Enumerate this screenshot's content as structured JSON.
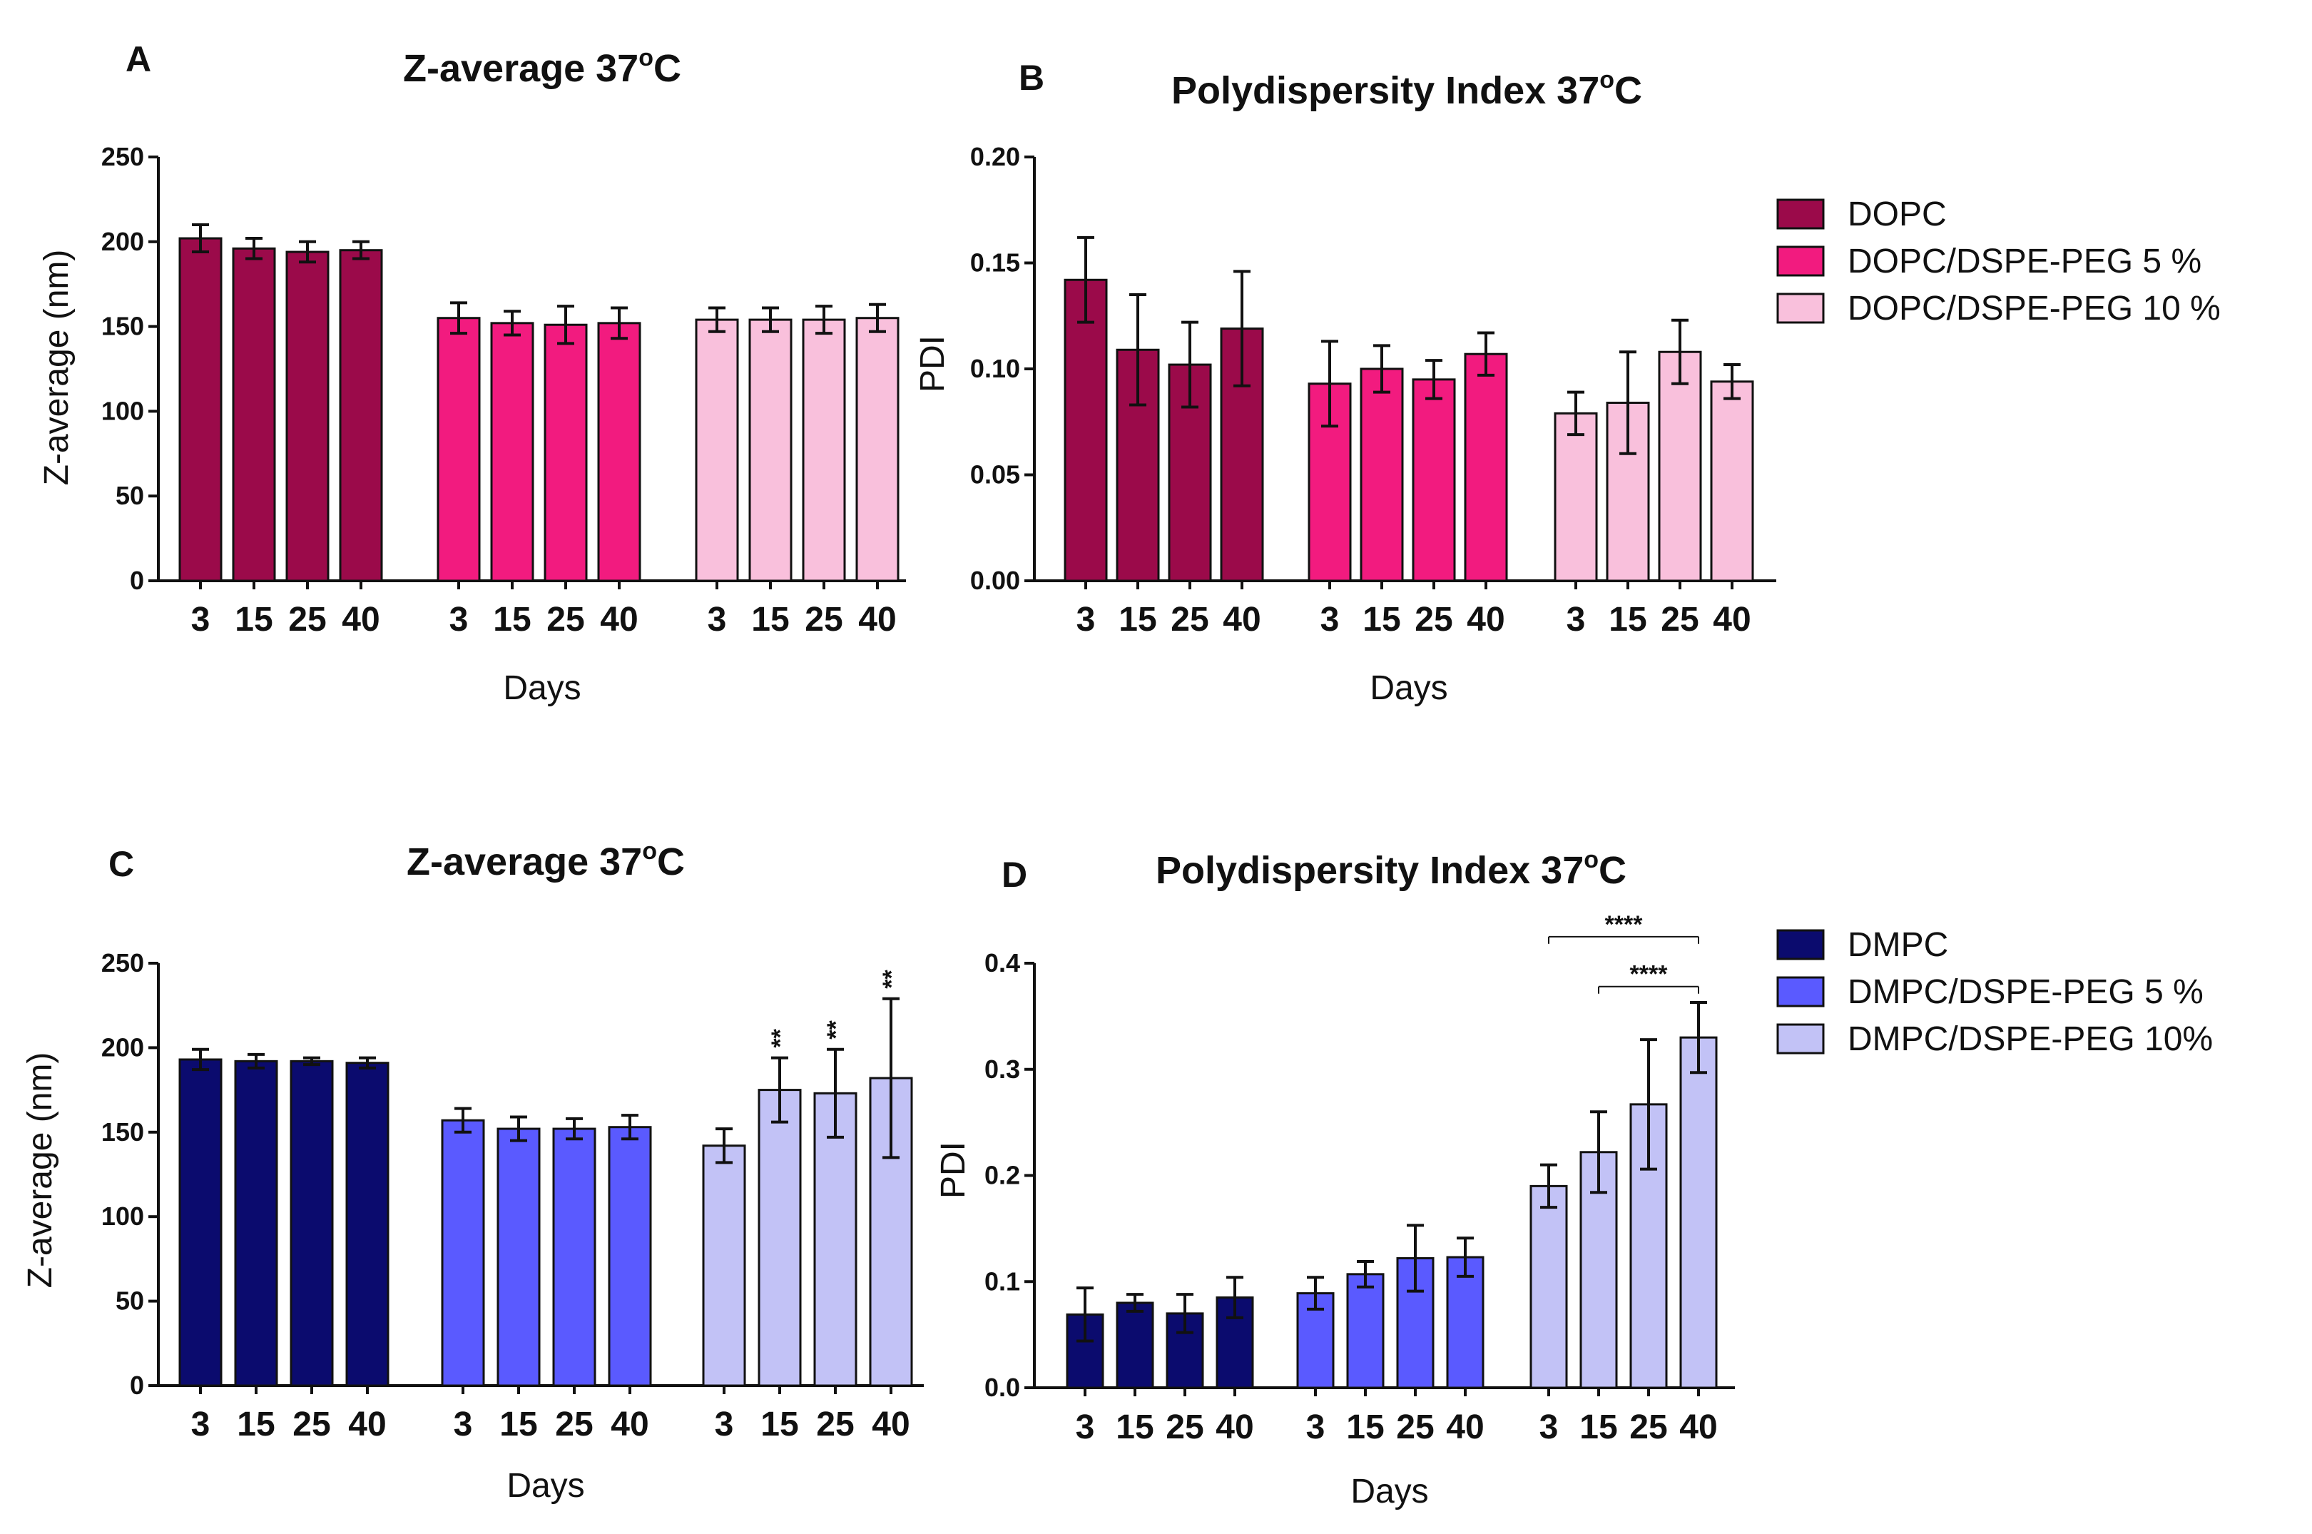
{
  "chart_data": [
    {
      "panel": "A",
      "type": "bar",
      "title": "Z-average  37",
      "title_sup": "o",
      "title_suffix": "C",
      "xlabel": "Days",
      "ylabel": "Z-average (nm)",
      "ylim": [
        0,
        250
      ],
      "yticks": [
        "0",
        "50",
        "100",
        "150",
        "200",
        "250"
      ],
      "categories": [
        "3",
        "15",
        "25",
        "40"
      ],
      "series": [
        {
          "name": "DOPC",
          "color": "#9b0a4a",
          "values": [
            202,
            196,
            194,
            195
          ],
          "errors": [
            8,
            6,
            6,
            5
          ]
        },
        {
          "name": "DOPC/DSPE-PEG 5 %",
          "color": "#f21b7f",
          "values": [
            155,
            152,
            151,
            152
          ],
          "errors": [
            9,
            7,
            11,
            9
          ]
        },
        {
          "name": "DOPC/DSPE-PEG 10 %",
          "color": "#f9c0dc",
          "values": [
            154,
            154,
            154,
            155
          ],
          "errors": [
            7,
            7,
            8,
            8
          ]
        }
      ],
      "annotations": []
    },
    {
      "panel": "B",
      "type": "bar",
      "title": "Polydispersity Index 37",
      "title_sup": "o",
      "title_suffix": "C",
      "xlabel": "Days",
      "ylabel": "PDI",
      "ylim": [
        0,
        0.2
      ],
      "yticks": [
        "0.00",
        "0.05",
        "0.10",
        "0.15",
        "0.20"
      ],
      "categories": [
        "3",
        "15",
        "25",
        "40"
      ],
      "series": [
        {
          "name": "DOPC",
          "color": "#9b0a4a",
          "values": [
            0.142,
            0.109,
            0.102,
            0.119
          ],
          "errors": [
            0.02,
            0.026,
            0.02,
            0.027
          ]
        },
        {
          "name": "DOPC/DSPE-PEG 5 %",
          "color": "#f21b7f",
          "values": [
            0.093,
            0.1,
            0.095,
            0.107
          ],
          "errors": [
            0.02,
            0.011,
            0.009,
            0.01
          ]
        },
        {
          "name": "DOPC/DSPE-PEG 10 %",
          "color": "#f9c0dc",
          "values": [
            0.079,
            0.084,
            0.108,
            0.094
          ],
          "errors": [
            0.01,
            0.024,
            0.015,
            0.008
          ]
        }
      ],
      "annotations": []
    },
    {
      "panel": "C",
      "type": "bar",
      "title": "Z-average  37",
      "title_sup": "o",
      "title_suffix": "C",
      "xlabel": "Days",
      "ylabel": "Z-average (nm)",
      "ylim": [
        0,
        250
      ],
      "yticks": [
        "0",
        "50",
        "100",
        "150",
        "200",
        "250"
      ],
      "categories": [
        "3",
        "15",
        "25",
        "40"
      ],
      "series": [
        {
          "name": "DMPC",
          "color": "#0b0b6e",
          "values": [
            193,
            192,
            192,
            191
          ],
          "errors": [
            6,
            4,
            2,
            3
          ]
        },
        {
          "name": "DMPC/DSPE-PEG 5 %",
          "color": "#5a5aff",
          "values": [
            157,
            152,
            152,
            153
          ],
          "errors": [
            7,
            7,
            6,
            7
          ]
        },
        {
          "name": "DMPC/DSPE-PEG 10%",
          "color": "#c2c2f6",
          "values": [
            142,
            175,
            173,
            182
          ],
          "errors": [
            10,
            19,
            26,
            47
          ]
        }
      ],
      "annotations": [
        {
          "series": 2,
          "category": 1,
          "text": "**"
        },
        {
          "series": 2,
          "category": 2,
          "text": "**"
        },
        {
          "series": 2,
          "category": 3,
          "text": "**"
        }
      ]
    },
    {
      "panel": "D",
      "type": "bar",
      "title": "Polydispersity Index 37",
      "title_sup": "o",
      "title_suffix": "C",
      "xlabel": "Days",
      "ylabel": "PDI",
      "ylim": [
        0,
        0.4
      ],
      "yticks": [
        "0.0",
        "0.1",
        "0.2",
        "0.3",
        "0.4"
      ],
      "categories": [
        "3",
        "15",
        "25",
        "40"
      ],
      "series": [
        {
          "name": "DMPC",
          "color": "#0b0b6e",
          "values": [
            0.069,
            0.08,
            0.07,
            0.085
          ],
          "errors": [
            0.025,
            0.008,
            0.018,
            0.019
          ]
        },
        {
          "name": "DMPC/DSPE-PEG 5 %",
          "color": "#5a5aff",
          "values": [
            0.089,
            0.107,
            0.122,
            0.123
          ],
          "errors": [
            0.015,
            0.012,
            0.031,
            0.018
          ]
        },
        {
          "name": "DMPC/DSPE-PEG 10%",
          "color": "#c2c2f6",
          "values": [
            0.19,
            0.222,
            0.267,
            0.33
          ],
          "errors": [
            0.02,
            0.038,
            0.061,
            0.033
          ]
        }
      ],
      "annotations": [
        {
          "type": "bracket",
          "series": 2,
          "from_category": 0,
          "to_category": 3,
          "text": "****",
          "level": 0.425
        },
        {
          "type": "bracket",
          "series": 2,
          "from_category": 1,
          "to_category": 3,
          "text": "****",
          "level": 0.378
        }
      ]
    }
  ],
  "legends": [
    {
      "items": [
        "DOPC",
        "DOPC/DSPE-PEG 5 %",
        "DOPC/DSPE-PEG 10 %"
      ],
      "colors": [
        "#9b0a4a",
        "#f21b7f",
        "#f9c0dc"
      ]
    },
    {
      "items": [
        "DMPC",
        "DMPC/DSPE-PEG 5 %",
        "DMPC/DSPE-PEG 10%"
      ],
      "colors": [
        "#0b0b6e",
        "#5a5aff",
        "#c2c2f6"
      ]
    }
  ]
}
